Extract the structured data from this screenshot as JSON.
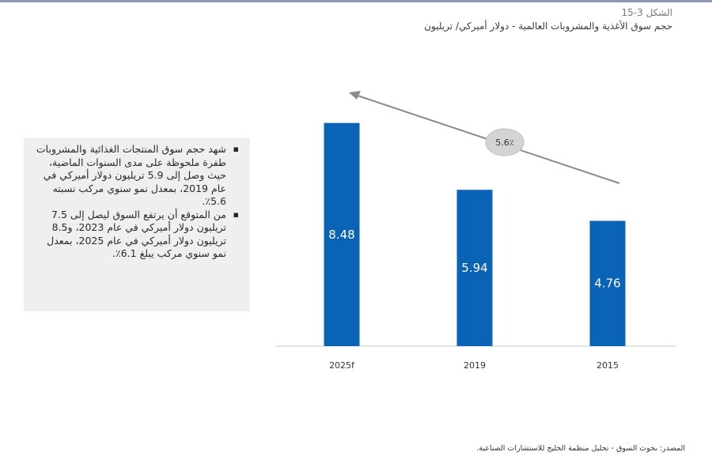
{
  "figure": {
    "number": "الشكل 3-15",
    "title": "حجم سوق الأغذية والمشروبات العالمية - دولار أميركي/ تريليون"
  },
  "notes": [
    "شهد حجم سوق المنتجات الغذائية والمشروبات طفرة ملحوظة على مدى السنوات الماضية، حيث وصل إلى 5.9 تريليون دولار أميركي في عام 2019، بمعدل نمو سنوي مركب نسبته 5.6٪.",
    "من المتوقع أن يرتفع السوق ليصل إلى 7.5 تريليون دولار أميركي في عام 2023، و8.5 تريليون دولار أميركي في عام 2025، بمعدل نمو سنوي مركب يبلغ 6.1٪."
  ],
  "source": "المصدر: بحوث السوق - تحليل منظمة الخليج للاستشارات الصناعية.",
  "chart_data": {
    "type": "bar",
    "categories": [
      "2025f",
      "2019",
      "2015"
    ],
    "values": [
      8.48,
      5.94,
      4.76
    ],
    "data_labels": [
      "8.48",
      "5.94",
      "4.76"
    ],
    "ylim": [
      0,
      10
    ],
    "grid": false,
    "bar_color": "#0a63b4",
    "annotation": {
      "label": "5.6٪",
      "type": "arrow",
      "direction": "from 2015 toward 2025f"
    },
    "title": "",
    "xlabel": "",
    "ylabel": ""
  }
}
